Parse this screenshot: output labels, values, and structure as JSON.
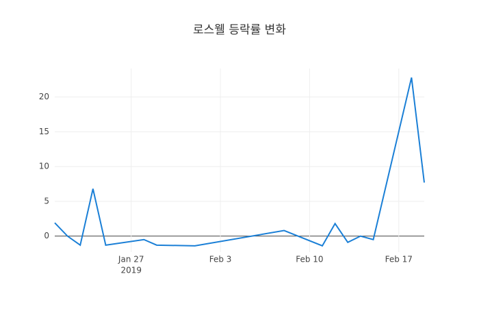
{
  "chart_data": {
    "type": "line",
    "title": "로스웰 등락률 변화",
    "x": [
      "2019-01-21",
      "2019-01-22",
      "2019-01-23",
      "2019-01-24",
      "2019-01-25",
      "2019-01-28",
      "2019-01-29",
      "2019-02-01",
      "2019-02-08",
      "2019-02-11",
      "2019-02-12",
      "2019-02-13",
      "2019-02-14",
      "2019-02-15",
      "2019-02-18",
      "2019-02-19"
    ],
    "values": [
      1.9,
      0,
      -1.3,
      6.8,
      -1.3,
      -0.5,
      -1.3,
      -1.4,
      0.8,
      -1.4,
      1.8,
      -0.9,
      0,
      -0.5,
      22.8,
      7.7
    ],
    "color": "#1a7fd6",
    "xlim": [
      "2019-01-21",
      "2019-02-19"
    ],
    "xticks": [
      {
        "value": "2019-01-27",
        "label": "Jan 27"
      },
      {
        "value": "2019-02-03",
        "label": "Feb 3"
      },
      {
        "value": "2019-02-10",
        "label": "Feb 10"
      },
      {
        "value": "2019-02-17",
        "label": "Feb 17"
      }
    ],
    "x_year_label": "2019",
    "ylim": [
      -2.3,
      24.1
    ],
    "yticks": [
      0,
      5,
      10,
      15,
      20
    ],
    "grid": true
  }
}
